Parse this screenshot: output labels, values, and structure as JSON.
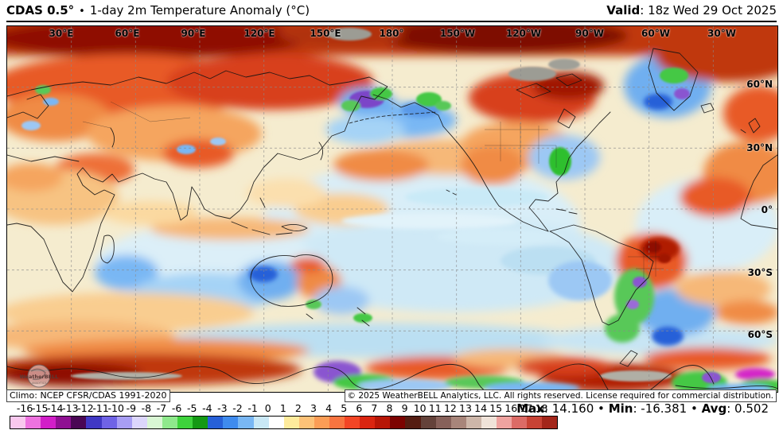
{
  "header": {
    "product": "CDAS 0.5°",
    "separator": "•",
    "title": "1-day 2m Temperature Anomaly (°C)",
    "valid_label": "Valid",
    "valid_colon": ":",
    "valid_value": "18z Wed 29 Oct 2025"
  },
  "map": {
    "lon_labels": [
      "30°E",
      "60°E",
      "90°E",
      "120°E",
      "150°E",
      "180°",
      "150°W",
      "120°W",
      "90°W",
      "60°W",
      "30°W"
    ],
    "lat_labels": [
      "60°N",
      "30°N",
      "0°",
      "30°S",
      "60°S"
    ],
    "watermark": "WeatherBELL",
    "watermark_sub": "ANALYTICS"
  },
  "footer": {
    "climo": "Climo: NCEP CFSR/CDAS 1991-2020",
    "copyright": "© 2025 WeatherBELL Analytics, LLC. All rights reserved. License required for commercial distribution."
  },
  "colorbar": {
    "ticks": [
      "-16",
      "-15",
      "-14",
      "-13",
      "-12",
      "-11",
      "-10",
      "-9",
      "-8",
      "-7",
      "-6",
      "-5",
      "-4",
      "-3",
      "-2",
      "-1",
      "0",
      "1",
      "2",
      "3",
      "4",
      "5",
      "6",
      "7",
      "8",
      "9",
      "10",
      "11",
      "12",
      "13",
      "14",
      "15",
      "16",
      "17",
      "18"
    ],
    "cell_colors": [
      "#F9C8EE",
      "#EE72DF",
      "#D21EC8",
      "#8F1092",
      "#4A0754",
      "#4038C4",
      "#6F63E6",
      "#A89EF4",
      "#DCD6FC",
      "#D9F7D4",
      "#8FE98C",
      "#3ED33C",
      "#149914",
      "#2760D8",
      "#3F8BEE",
      "#79B7F4",
      "#C9E8F6",
      "#FFFFFF",
      "#FEEB9C",
      "#FDC278",
      "#FB9D56",
      "#F87440",
      "#F34525",
      "#DA2510",
      "#B71606",
      "#7C0301",
      "#551D12",
      "#64423A",
      "#87615A",
      "#A8857A",
      "#CDB6A9",
      "#F0E3D9",
      "#EFA3A0",
      "#DC6B66",
      "#C84335",
      "#A3261A"
    ]
  },
  "stats": {
    "max_label": "Max",
    "max_value": "14.160",
    "min_label": "Min",
    "min_value": "-16.381",
    "avg_label": "Avg",
    "avg_value": "0.502",
    "colon": ":",
    "separator": "•"
  },
  "chart_data": {
    "type": "heatmap",
    "title": "1-day 2m Temperature Anomaly (°C)",
    "model": "CDAS 0.5°",
    "valid": "18z Wed 29 Oct 2025",
    "climatology": "NCEP CFSR/CDAS 1991-2020",
    "units": "°C",
    "scale_ticks": [
      -16,
      -15,
      -14,
      -13,
      -12,
      -11,
      -10,
      -9,
      -8,
      -7,
      -6,
      -5,
      -4,
      -3,
      -2,
      -1,
      0,
      1,
      2,
      3,
      4,
      5,
      6,
      7,
      8,
      9,
      10,
      11,
      12,
      13,
      14,
      15,
      16,
      17,
      18
    ],
    "scale_range": [
      -16,
      18
    ],
    "stats": {
      "max": 14.16,
      "min": -16.381,
      "avg": 0.502
    },
    "projection": {
      "lon_labels_every_deg": 30,
      "lat_labels_every_deg": 30,
      "extent": "global, 0°E–360°E, 90°N–90°S"
    }
  }
}
